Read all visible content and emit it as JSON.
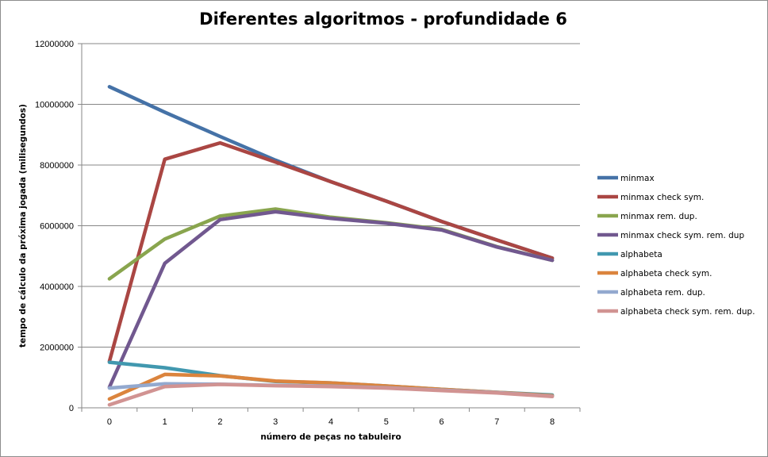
{
  "chart_data": {
    "type": "line",
    "title": "Diferentes algoritmos - profundidade 6",
    "xlabel": "número de peças no tabuleiro",
    "ylabel": "tempo de cálculo da próxima jogada (milisegundos)",
    "categories": [
      "0",
      "1",
      "2",
      "3",
      "4",
      "5",
      "6",
      "7",
      "8"
    ],
    "y_ticks": [
      "0",
      "2000000",
      "4000000",
      "6000000",
      "8000000",
      "10000000",
      "12000000"
    ],
    "ylim": [
      0,
      12000000
    ],
    "grid": true,
    "legend_position": "right",
    "series": [
      {
        "name": "minmax",
        "color": "#4572A7",
        "values": [
          10580000,
          9740000,
          8940000,
          8160000,
          7450000,
          6810000,
          6140000,
          5530000,
          4930000
        ]
      },
      {
        "name": "minmax check sym.",
        "color": "#AA4643",
        "values": [
          1530000,
          8190000,
          8730000,
          8100000,
          7450000,
          6810000,
          6140000,
          5530000,
          4930000
        ]
      },
      {
        "name": "minmax rem. dup.",
        "color": "#89A54E",
        "values": [
          4250000,
          5560000,
          6320000,
          6550000,
          6280000,
          6100000,
          5880000,
          5310000,
          4860000
        ]
      },
      {
        "name": "minmax check sym. rem. dup",
        "color": "#71588F",
        "values": [
          680000,
          4760000,
          6200000,
          6460000,
          6240000,
          6080000,
          5860000,
          5300000,
          4860000
        ]
      },
      {
        "name": "alphabeta",
        "color": "#4198AF",
        "values": [
          1500000,
          1320000,
          1060000,
          870000,
          820000,
          720000,
          610000,
          510000,
          420000
        ]
      },
      {
        "name": "alphabeta check sym.",
        "color": "#DB843D",
        "values": [
          290000,
          1100000,
          1050000,
          880000,
          820000,
          720000,
          610000,
          510000,
          400000
        ]
      },
      {
        "name": "alphabeta rem. dup.",
        "color": "#93A9CF",
        "values": [
          650000,
          790000,
          780000,
          740000,
          710000,
          660000,
          580000,
          500000,
          380000
        ]
      },
      {
        "name": "alphabeta check sym. rem. dup.",
        "color": "#D19392",
        "values": [
          100000,
          700000,
          770000,
          730000,
          700000,
          650000,
          570000,
          490000,
          370000
        ]
      }
    ]
  }
}
